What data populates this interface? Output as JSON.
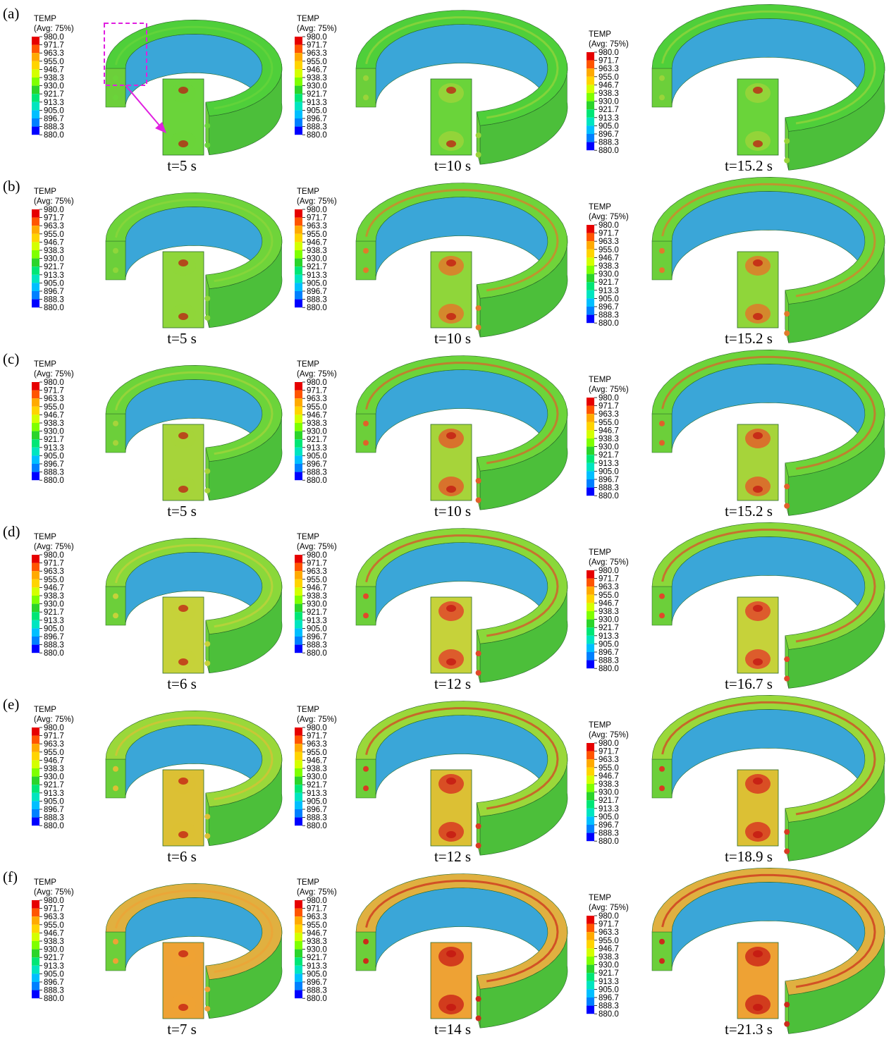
{
  "legend": {
    "title": "TEMP",
    "subtitle": "(Avg: 75%)",
    "levels": [
      "980.0",
      "971.7",
      "963.3",
      "955.0",
      "946.7",
      "938.3",
      "930.0",
      "921.7",
      "913.3",
      "905.0",
      "896.7",
      "888.3",
      "880.0"
    ],
    "colors": [
      "#e60000",
      "#ff5500",
      "#ffaa00",
      "#ffd400",
      "#d4ff00",
      "#7fff00",
      "#2bd42b",
      "#00e676",
      "#00e5c0",
      "#00bfff",
      "#0080ff",
      "#0000ff"
    ]
  },
  "rows": [
    {
      "label": "(a)",
      "panels": [
        {
          "time": "t=5 s"
        },
        {
          "time": "t=10 s"
        },
        {
          "time": "t=15.2 s"
        }
      ]
    },
    {
      "label": "(b)",
      "panels": [
        {
          "time": "t=5 s"
        },
        {
          "time": "t=10 s"
        },
        {
          "time": "t=15.2 s"
        }
      ]
    },
    {
      "label": "(c)",
      "panels": [
        {
          "time": "t=5 s"
        },
        {
          "time": "t=10 s"
        },
        {
          "time": "t=15.2 s"
        }
      ]
    },
    {
      "label": "(d)",
      "panels": [
        {
          "time": "t=6 s"
        },
        {
          "time": "t=12 s"
        },
        {
          "time": "t=16.7 s"
        }
      ]
    },
    {
      "label": "(e)",
      "panels": [
        {
          "time": "t=6 s"
        },
        {
          "time": "t=12 s"
        },
        {
          "time": "t=18.9 s"
        }
      ]
    },
    {
      "label": "(f)",
      "panels": [
        {
          "time": "t=7 s"
        },
        {
          "time": "t=14 s"
        },
        {
          "time": "t=21.3 s"
        }
      ]
    }
  ]
}
